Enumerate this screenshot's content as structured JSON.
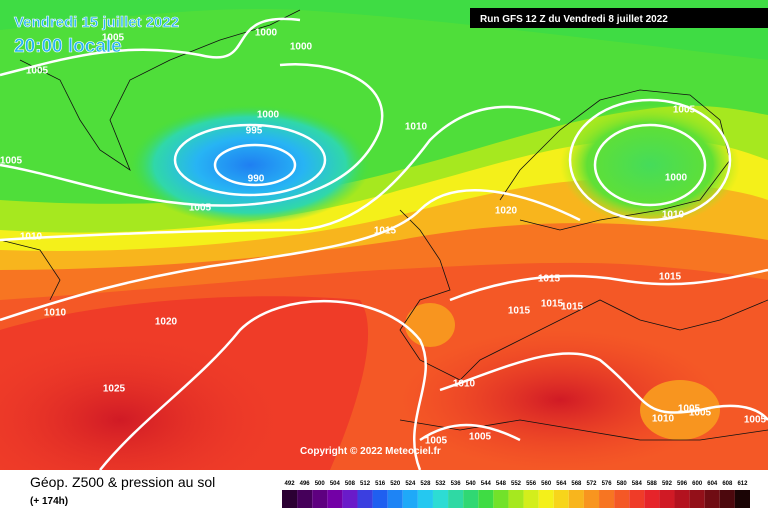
{
  "header": {
    "date": "Vendredi 15 juillet 2022",
    "time": "20:00 locale",
    "run": "Run GFS 12 Z du Vendredi 8 juillet 2022"
  },
  "copyright": "Copyright © 2022 Meteociel.fr",
  "footer": {
    "title": "Géop. Z500 & pression au sol",
    "lead": "(+ 174h)"
  },
  "isobars": [
    "1000",
    "1000",
    "1005",
    "1005",
    "1000",
    "995",
    "990",
    "1010",
    "1005",
    "1005",
    "1010",
    "1015",
    "1020",
    "1005",
    "1000",
    "1010",
    "1015",
    "1015",
    "1015",
    "1015",
    "1015",
    "1010",
    "1020",
    "1025",
    "1010",
    "1005",
    "1005",
    "1010",
    "1005",
    "1005",
    "1005"
  ],
  "legend": {
    "labels": [
      492,
      496,
      500,
      504,
      508,
      512,
      516,
      520,
      524,
      528,
      532,
      536,
      540,
      544,
      548,
      552,
      556,
      560,
      564,
      568,
      572,
      576,
      580,
      584,
      588,
      592,
      596,
      600,
      604,
      608,
      612
    ],
    "colors": [
      "#2b0033",
      "#45005a",
      "#5e0080",
      "#7300a6",
      "#6a1bc9",
      "#3b3fe0",
      "#1f5ff0",
      "#1e84f5",
      "#1fa9f8",
      "#25c8f0",
      "#2ddcd4",
      "#2fd9a4",
      "#30d873",
      "#3fdc44",
      "#72e22a",
      "#a6e81f",
      "#d3ee1c",
      "#f4f01a",
      "#f7d51b",
      "#f8b51d",
      "#f8951f",
      "#f77522",
      "#f45826",
      "#ef3c28",
      "#e6242a",
      "#d01a25",
      "#b3121f",
      "#931019",
      "#700c13",
      "#4c080d",
      "#1a0405"
    ]
  }
}
